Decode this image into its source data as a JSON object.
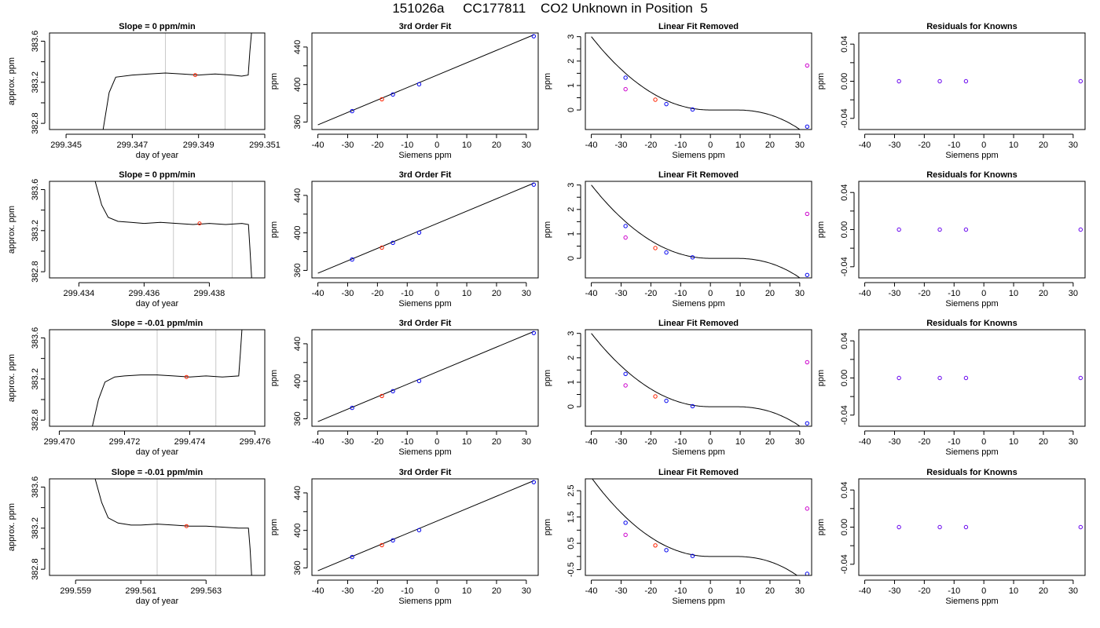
{
  "page": {
    "title": "151026a     CC177811    CO2 Unknown in Position  5"
  },
  "chart_data": [
    {
      "type": "line",
      "panel": "trace",
      "row": 0,
      "title": "Slope =  0  ppm/min",
      "xlabel": "day of year",
      "ylabel": "approx. ppm",
      "xlim": [
        299.3445,
        299.351
      ],
      "ylim": [
        382.74,
        383.68
      ],
      "xticks": [
        299.345,
        299.347,
        299.349,
        299.351
      ],
      "xtick_labels": [
        "299.345",
        "299.347",
        "299.349",
        "299.351"
      ],
      "yticks": [
        382.8,
        383.2,
        383.6
      ],
      "ytick_labels": [
        "382.8",
        "383.2",
        "383.6"
      ],
      "vlines": [
        299.348,
        299.3498
      ],
      "marker": {
        "x": 299.3489,
        "y": 383.27
      },
      "trace": [
        [
          299.3461,
          382.7
        ],
        [
          299.3463,
          383.1
        ],
        [
          299.3465,
          383.25
        ],
        [
          299.347,
          383.27
        ],
        [
          299.3475,
          383.28
        ],
        [
          299.348,
          383.29
        ],
        [
          299.3485,
          383.28
        ],
        [
          299.349,
          383.27
        ],
        [
          299.3495,
          383.28
        ],
        [
          299.35,
          383.27
        ],
        [
          299.3503,
          383.26
        ],
        [
          299.3505,
          383.27
        ],
        [
          299.35055,
          383.5
        ],
        [
          299.3506,
          383.68
        ]
      ]
    },
    {
      "type": "scatter",
      "panel": "fit",
      "row": 0,
      "title": "3rd Order Fit",
      "xlabel": "Siemens ppm",
      "ylabel": "ppm",
      "xlim": [
        -42,
        34
      ],
      "ylim": [
        352,
        455
      ],
      "xticks": [
        -40,
        -30,
        -20,
        -10,
        0,
        10,
        20,
        30
      ],
      "yticks": [
        360,
        400,
        440
      ],
      "line": [
        [
          -40,
          357
        ],
        [
          32.5,
          453
        ]
      ],
      "points": [
        {
          "x": -28.5,
          "y": 371.6,
          "color": "#0000ee"
        },
        {
          "x": -18.5,
          "y": 384.3,
          "color": "#ff2200"
        },
        {
          "x": -14.8,
          "y": 389.4,
          "color": "#0000ee"
        },
        {
          "x": -6.0,
          "y": 400.3,
          "color": "#0000ee"
        },
        {
          "x": 32.5,
          "y": 451.5,
          "color": "#0000ee"
        }
      ]
    },
    {
      "type": "scatter",
      "panel": "resid",
      "row": 0,
      "title": "Linear Fit Removed",
      "xlabel": "Siemens ppm",
      "ylabel": "ppm",
      "xlim": [
        -42,
        34
      ],
      "ylim": [
        -0.8,
        3.15
      ],
      "xticks": [
        -40,
        -30,
        -20,
        -10,
        0,
        10,
        20,
        30
      ],
      "yticks": [
        0,
        1,
        2,
        3
      ],
      "points": [
        {
          "x": -28.5,
          "y": 1.32,
          "color": "#0000ee"
        },
        {
          "x": -28.5,
          "y": 0.85,
          "color": "#cc00cc"
        },
        {
          "x": -18.5,
          "y": 0.42,
          "color": "#ff2200"
        },
        {
          "x": -14.8,
          "y": 0.24,
          "color": "#0000ee"
        },
        {
          "x": -6.0,
          "y": 0.02,
          "color": "#0000ee"
        },
        {
          "x": 32.5,
          "y": -0.68,
          "color": "#0000ee"
        },
        {
          "x": 32.5,
          "y": 1.82,
          "color": "#cc00cc"
        }
      ]
    },
    {
      "type": "scatter",
      "panel": "known",
      "row": 0,
      "title": "Residuals for Knowns",
      "xlabel": "Siemens ppm",
      "ylabel": "ppm",
      "xlim": [
        -42,
        34
      ],
      "ylim": [
        -0.052,
        0.052
      ],
      "xticks": [
        -40,
        -30,
        -20,
        -10,
        0,
        10,
        20,
        30
      ],
      "yticks": [
        -0.04,
        0.0,
        0.04
      ],
      "ytick_labels": [
        "-0.04",
        "0.00",
        "0.04"
      ],
      "points": [
        {
          "x": -28.5,
          "y": 0,
          "color": "#6600ee"
        },
        {
          "x": -14.8,
          "y": 0,
          "color": "#6600ee"
        },
        {
          "x": -6.0,
          "y": 0,
          "color": "#6600ee"
        },
        {
          "x": 32.5,
          "y": 0,
          "color": "#6600ee"
        }
      ]
    },
    {
      "type": "line",
      "panel": "trace",
      "row": 1,
      "title": "Slope =  0  ppm/min",
      "xlabel": "day of year",
      "ylabel": "approx. ppm",
      "xlim": [
        299.4331,
        299.4397
      ],
      "ylim": [
        382.74,
        383.68
      ],
      "xticks": [
        299.434,
        299.436,
        299.438
      ],
      "xtick_labels": [
        "299.434",
        "299.436",
        "299.438"
      ],
      "yticks": [
        382.8,
        383.2,
        383.6
      ],
      "ytick_labels": [
        "382.8",
        "383.2",
        "383.6"
      ],
      "vlines": [
        299.4369,
        299.4387
      ],
      "marker": {
        "x": 299.4377,
        "y": 383.27
      },
      "trace": [
        [
          299.4345,
          383.68
        ],
        [
          299.4347,
          383.45
        ],
        [
          299.4349,
          383.33
        ],
        [
          299.4352,
          383.29
        ],
        [
          299.4356,
          383.28
        ],
        [
          299.436,
          383.27
        ],
        [
          299.4365,
          383.28
        ],
        [
          299.437,
          383.27
        ],
        [
          299.4375,
          383.26
        ],
        [
          299.438,
          383.27
        ],
        [
          299.4385,
          383.26
        ],
        [
          299.439,
          383.27
        ],
        [
          299.4392,
          383.26
        ],
        [
          299.43925,
          383.0
        ],
        [
          299.4393,
          382.72
        ]
      ]
    },
    {
      "type": "scatter",
      "panel": "fit",
      "row": 1,
      "title": "3rd Order Fit",
      "xlabel": "Siemens ppm",
      "ylabel": "ppm",
      "xlim": [
        -42,
        34
      ],
      "ylim": [
        352,
        455
      ],
      "xticks": [
        -40,
        -30,
        -20,
        -10,
        0,
        10,
        20,
        30
      ],
      "yticks": [
        360,
        400,
        440
      ],
      "line": [
        [
          -40,
          357
        ],
        [
          32.5,
          453
        ]
      ],
      "points": [
        {
          "x": -28.5,
          "y": 371.6,
          "color": "#0000ee"
        },
        {
          "x": -18.5,
          "y": 384.3,
          "color": "#ff2200"
        },
        {
          "x": -14.8,
          "y": 389.4,
          "color": "#0000ee"
        },
        {
          "x": -6.0,
          "y": 400.3,
          "color": "#0000ee"
        },
        {
          "x": 32.5,
          "y": 451.5,
          "color": "#0000ee"
        }
      ]
    },
    {
      "type": "scatter",
      "panel": "resid",
      "row": 1,
      "title": "Linear Fit Removed",
      "xlabel": "Siemens ppm",
      "ylabel": "ppm",
      "xlim": [
        -42,
        34
      ],
      "ylim": [
        -0.8,
        3.15
      ],
      "xticks": [
        -40,
        -30,
        -20,
        -10,
        0,
        10,
        20,
        30
      ],
      "yticks": [
        0,
        1,
        2,
        3
      ],
      "points": [
        {
          "x": -28.5,
          "y": 1.32,
          "color": "#0000ee"
        },
        {
          "x": -28.5,
          "y": 0.85,
          "color": "#cc00cc"
        },
        {
          "x": -18.5,
          "y": 0.42,
          "color": "#ff2200"
        },
        {
          "x": -14.8,
          "y": 0.24,
          "color": "#0000ee"
        },
        {
          "x": -6.0,
          "y": 0.04,
          "color": "#0000ee"
        },
        {
          "x": 32.5,
          "y": -0.68,
          "color": "#0000ee"
        },
        {
          "x": 32.5,
          "y": 1.82,
          "color": "#cc00cc"
        }
      ]
    },
    {
      "type": "scatter",
      "panel": "known",
      "row": 1,
      "title": "Residuals for Knowns",
      "xlabel": "Siemens ppm",
      "ylabel": "ppm",
      "xlim": [
        -42,
        34
      ],
      "ylim": [
        -0.052,
        0.052
      ],
      "xticks": [
        -40,
        -30,
        -20,
        -10,
        0,
        10,
        20,
        30
      ],
      "yticks": [
        -0.04,
        0.0,
        0.04
      ],
      "ytick_labels": [
        "-0.04",
        "0.00",
        "0.04"
      ],
      "points": [
        {
          "x": -28.5,
          "y": 0,
          "color": "#6600ee"
        },
        {
          "x": -14.8,
          "y": 0,
          "color": "#6600ee"
        },
        {
          "x": -6.0,
          "y": 0,
          "color": "#6600ee"
        },
        {
          "x": 32.5,
          "y": 0,
          "color": "#6600ee"
        }
      ]
    },
    {
      "type": "line",
      "panel": "trace",
      "row": 2,
      "title": "Slope =  -0.01  ppm/min",
      "xlabel": "day of year",
      "ylabel": "approx. ppm",
      "xlim": [
        299.4697,
        299.4763
      ],
      "ylim": [
        382.74,
        383.68
      ],
      "xticks": [
        299.47,
        299.472,
        299.474,
        299.476
      ],
      "xtick_labels": [
        "299.470",
        "299.472",
        "299.474",
        "299.476"
      ],
      "yticks": [
        382.8,
        383.2,
        383.6
      ],
      "ytick_labels": [
        "382.8",
        "383.2",
        "383.6"
      ],
      "vlines": [
        299.473,
        299.4748
      ],
      "marker": {
        "x": 299.4739,
        "y": 383.22
      },
      "trace": [
        [
          299.471,
          382.72
        ],
        [
          299.4712,
          383.0
        ],
        [
          299.4714,
          383.17
        ],
        [
          299.4717,
          383.22
        ],
        [
          299.472,
          383.23
        ],
        [
          299.4725,
          383.24
        ],
        [
          299.473,
          383.24
        ],
        [
          299.4735,
          383.23
        ],
        [
          299.474,
          383.22
        ],
        [
          299.4745,
          383.23
        ],
        [
          299.475,
          383.22
        ],
        [
          299.4755,
          383.23
        ],
        [
          299.47555,
          383.45
        ],
        [
          299.4756,
          383.68
        ]
      ]
    },
    {
      "type": "scatter",
      "panel": "fit",
      "row": 2,
      "title": "3rd Order Fit",
      "xlabel": "Siemens ppm",
      "ylabel": "ppm",
      "xlim": [
        -42,
        34
      ],
      "ylim": [
        352,
        455
      ],
      "xticks": [
        -40,
        -30,
        -20,
        -10,
        0,
        10,
        20,
        30
      ],
      "yticks": [
        360,
        400,
        440
      ],
      "line": [
        [
          -40,
          357
        ],
        [
          32.5,
          453
        ]
      ],
      "points": [
        {
          "x": -28.5,
          "y": 371.6,
          "color": "#0000ee"
        },
        {
          "x": -18.5,
          "y": 384.3,
          "color": "#ff2200"
        },
        {
          "x": -14.8,
          "y": 389.4,
          "color": "#0000ee"
        },
        {
          "x": -6.0,
          "y": 400.3,
          "color": "#0000ee"
        },
        {
          "x": 32.5,
          "y": 451.5,
          "color": "#0000ee"
        }
      ]
    },
    {
      "type": "scatter",
      "panel": "resid",
      "row": 2,
      "title": "Linear Fit Removed",
      "xlabel": "Siemens ppm",
      "ylabel": "ppm",
      "xlim": [
        -42,
        34
      ],
      "ylim": [
        -0.8,
        3.15
      ],
      "xticks": [
        -40,
        -30,
        -20,
        -10,
        0,
        10,
        20,
        30
      ],
      "yticks": [
        0,
        1,
        2,
        3
      ],
      "points": [
        {
          "x": -28.5,
          "y": 1.34,
          "color": "#0000ee"
        },
        {
          "x": -28.5,
          "y": 0.87,
          "color": "#cc00cc"
        },
        {
          "x": -18.5,
          "y": 0.42,
          "color": "#ff2200"
        },
        {
          "x": -14.8,
          "y": 0.24,
          "color": "#0000ee"
        },
        {
          "x": -6.0,
          "y": 0.02,
          "color": "#0000ee"
        },
        {
          "x": 32.5,
          "y": -0.68,
          "color": "#0000ee"
        },
        {
          "x": 32.5,
          "y": 1.82,
          "color": "#cc00cc"
        }
      ]
    },
    {
      "type": "scatter",
      "panel": "known",
      "row": 2,
      "title": "Residuals for Knowns",
      "xlabel": "Siemens ppm",
      "ylabel": "ppm",
      "xlim": [
        -42,
        34
      ],
      "ylim": [
        -0.052,
        0.052
      ],
      "xticks": [
        -40,
        -30,
        -20,
        -10,
        0,
        10,
        20,
        30
      ],
      "yticks": [
        -0.04,
        0.0,
        0.04
      ],
      "ytick_labels": [
        "-0.04",
        "0.00",
        "0.04"
      ],
      "points": [
        {
          "x": -28.5,
          "y": 0,
          "color": "#6600ee"
        },
        {
          "x": -14.8,
          "y": 0,
          "color": "#6600ee"
        },
        {
          "x": -6.0,
          "y": 0,
          "color": "#6600ee"
        },
        {
          "x": 32.5,
          "y": 0,
          "color": "#6600ee"
        }
      ]
    },
    {
      "type": "line",
      "panel": "trace",
      "row": 3,
      "title": "Slope =  -0.01  ppm/min",
      "xlabel": "day of year",
      "ylabel": "approx. ppm",
      "xlim": [
        299.5582,
        299.5648
      ],
      "ylim": [
        382.74,
        383.68
      ],
      "xticks": [
        299.559,
        299.561,
        299.563
      ],
      "xtick_labels": [
        "299.559",
        "299.561",
        "299.563"
      ],
      "yticks": [
        382.8,
        383.2,
        383.6
      ],
      "ytick_labels": [
        "382.8",
        "383.2",
        "383.6"
      ],
      "vlines": [
        299.5615,
        299.5633
      ],
      "marker": {
        "x": 299.5624,
        "y": 383.22
      },
      "trace": [
        [
          299.5596,
          383.68
        ],
        [
          299.5598,
          383.45
        ],
        [
          299.56,
          383.3
        ],
        [
          299.5603,
          383.25
        ],
        [
          299.5607,
          383.23
        ],
        [
          299.561,
          383.23
        ],
        [
          299.5615,
          383.24
        ],
        [
          299.562,
          383.23
        ],
        [
          299.5625,
          383.22
        ],
        [
          299.563,
          383.22
        ],
        [
          299.5635,
          383.21
        ],
        [
          299.564,
          383.2
        ],
        [
          299.5643,
          383.2
        ],
        [
          299.56435,
          383.0
        ],
        [
          299.5644,
          382.72
        ]
      ]
    },
    {
      "type": "scatter",
      "panel": "fit",
      "row": 3,
      "title": "3rd Order Fit",
      "xlabel": "Siemens ppm",
      "ylabel": "ppm",
      "xlim": [
        -42,
        34
      ],
      "ylim": [
        352,
        455
      ],
      "xticks": [
        -40,
        -30,
        -20,
        -10,
        0,
        10,
        20,
        30
      ],
      "yticks": [
        360,
        400,
        440
      ],
      "line": [
        [
          -40,
          357
        ],
        [
          32.5,
          453
        ]
      ],
      "points": [
        {
          "x": -28.5,
          "y": 371.6,
          "color": "#0000ee"
        },
        {
          "x": -18.5,
          "y": 384.3,
          "color": "#ff2200"
        },
        {
          "x": -14.8,
          "y": 389.4,
          "color": "#0000ee"
        },
        {
          "x": -6.0,
          "y": 400.3,
          "color": "#0000ee"
        },
        {
          "x": 32.5,
          "y": 451.5,
          "color": "#0000ee"
        }
      ]
    },
    {
      "type": "scatter",
      "panel": "resid",
      "row": 3,
      "title": "Linear Fit Removed",
      "xlabel": "Siemens ppm",
      "ylabel": "ppm",
      "xlim": [
        -42,
        34
      ],
      "ylim": [
        -0.72,
        2.95
      ],
      "xticks": [
        -40,
        -30,
        -20,
        -10,
        0,
        10,
        20,
        30
      ],
      "yticks": [
        -0.5,
        0.5,
        1.5,
        2.5
      ],
      "ytick_labels": [
        "-0.5",
        "0.5",
        "1.5",
        "2.5"
      ],
      "points": [
        {
          "x": -28.5,
          "y": 1.28,
          "color": "#0000ee"
        },
        {
          "x": -28.5,
          "y": 0.82,
          "color": "#cc00cc"
        },
        {
          "x": -18.5,
          "y": 0.42,
          "color": "#ff2200"
        },
        {
          "x": -14.8,
          "y": 0.24,
          "color": "#0000ee"
        },
        {
          "x": -6.0,
          "y": 0.02,
          "color": "#0000ee"
        },
        {
          "x": 32.5,
          "y": -0.66,
          "color": "#0000ee"
        },
        {
          "x": 32.5,
          "y": 1.82,
          "color": "#cc00cc"
        }
      ]
    },
    {
      "type": "scatter",
      "panel": "known",
      "row": 3,
      "title": "Residuals for Knowns",
      "xlabel": "Siemens ppm",
      "ylabel": "ppm",
      "xlim": [
        -42,
        34
      ],
      "ylim": [
        -0.052,
        0.052
      ],
      "xticks": [
        -40,
        -30,
        -20,
        -10,
        0,
        10,
        20,
        30
      ],
      "yticks": [
        -0.04,
        0.0,
        0.04
      ],
      "ytick_labels": [
        "-0.04",
        "0.00",
        "0.04"
      ],
      "points": [
        {
          "x": -28.5,
          "y": 0,
          "color": "#6600ee"
        },
        {
          "x": -14.8,
          "y": 0,
          "color": "#6600ee"
        },
        {
          "x": -6.0,
          "y": 0,
          "color": "#6600ee"
        },
        {
          "x": 32.5,
          "y": 0,
          "color": "#6600ee"
        }
      ]
    }
  ]
}
